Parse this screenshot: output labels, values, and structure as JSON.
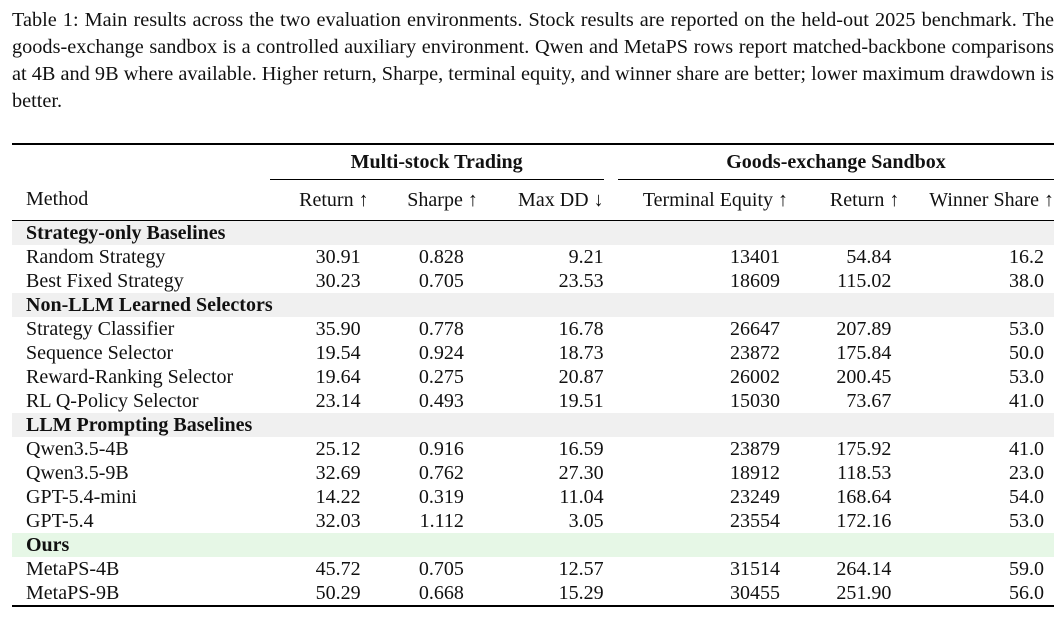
{
  "caption": {
    "label": "Table 1:",
    "text": "Main results across the two evaluation environments. Stock results are reported on the held-out 2025 benchmark. The goods-exchange sandbox is a controlled auxiliary environment. Qwen and MetaPS rows report matched-backbone comparisons at 4B and 9B where available. Higher return, Sharpe, terminal equity, and winner share are better; lower maximum drawdown is better."
  },
  "groups": {
    "stock": "Multi-stock Trading",
    "sandbox": "Goods-exchange Sandbox"
  },
  "columns": {
    "method": "Method",
    "return": "Return ↑",
    "sharpe": "Sharpe ↑",
    "maxdd": "Max DD ↓",
    "equity": "Terminal Equity ↑",
    "return2": "Return ↑",
    "winner": "Winner Share ↑"
  },
  "sections": [
    {
      "title": "Strategy-only Baselines",
      "highlight": false,
      "rows": [
        {
          "method": "Random Strategy",
          "values": [
            "30.91",
            "0.828",
            "9.21",
            "13401",
            "54.84",
            "16.2"
          ],
          "bold": []
        },
        {
          "method": "Best Fixed Strategy",
          "values": [
            "30.23",
            "0.705",
            "23.53",
            "18609",
            "115.02",
            "38.0"
          ],
          "bold": []
        }
      ]
    },
    {
      "title": "Non-LLM Learned Selectors",
      "highlight": false,
      "rows": [
        {
          "method": "Strategy Classifier",
          "values": [
            "35.90",
            "0.778",
            "16.78",
            "26647",
            "207.89",
            "53.0"
          ],
          "bold": []
        },
        {
          "method": "Sequence Selector",
          "values": [
            "19.54",
            "0.924",
            "18.73",
            "23872",
            "175.84",
            "50.0"
          ],
          "bold": []
        },
        {
          "method": "Reward-Ranking Selector",
          "values": [
            "19.64",
            "0.275",
            "20.87",
            "26002",
            "200.45",
            "53.0"
          ],
          "bold": []
        },
        {
          "method": "RL Q-Policy Selector",
          "values": [
            "23.14",
            "0.493",
            "19.51",
            "15030",
            "73.67",
            "41.0"
          ],
          "bold": []
        }
      ]
    },
    {
      "title": "LLM Prompting Baselines",
      "highlight": false,
      "rows": [
        {
          "method": "Qwen3.5-4B",
          "values": [
            "25.12",
            "0.916",
            "16.59",
            "23879",
            "175.92",
            "41.0"
          ],
          "bold": []
        },
        {
          "method": "Qwen3.5-9B",
          "values": [
            "32.69",
            "0.762",
            "27.30",
            "18912",
            "118.53",
            "23.0"
          ],
          "bold": []
        },
        {
          "method": "GPT-5.4-mini",
          "values": [
            "14.22",
            "0.319",
            "11.04",
            "23249",
            "168.64",
            "54.0"
          ],
          "bold": []
        },
        {
          "method": "GPT-5.4",
          "values": [
            "32.03",
            "1.112",
            "3.05",
            "23554",
            "172.16",
            "53.0"
          ],
          "bold": [
            1,
            2
          ]
        }
      ]
    },
    {
      "title": "Ours",
      "highlight": true,
      "rows": [
        {
          "method": "MetaPS-4B",
          "values": [
            "45.72",
            "0.705",
            "12.57",
            "31514",
            "264.14",
            "59.0"
          ],
          "bold": [
            3,
            4,
            5
          ]
        },
        {
          "method": "MetaPS-9B",
          "values": [
            "50.29",
            "0.668",
            "15.29",
            "30455",
            "251.90",
            "56.0"
          ],
          "bold": [
            0
          ]
        }
      ]
    }
  ]
}
